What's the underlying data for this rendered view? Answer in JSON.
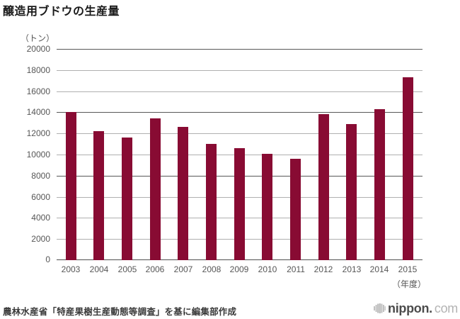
{
  "title": "醸造用ブドウの生産量",
  "footer": {
    "source": "農林水産省「特産果樹生産動態等調査」を基に編集部作成"
  },
  "brand": {
    "bold": "nippon.",
    "light": "com"
  },
  "chart_data": {
    "type": "bar",
    "title": "醸造用ブドウの生産量",
    "unit_label": "（トン）",
    "x_axis_note": "（年度）",
    "categories": [
      "2003",
      "2004",
      "2005",
      "2006",
      "2007",
      "2008",
      "2009",
      "2010",
      "2011",
      "2012",
      "2013",
      "2014",
      "2015"
    ],
    "values": [
      14000,
      12200,
      11600,
      13400,
      12600,
      11000,
      10600,
      10100,
      9600,
      13800,
      12900,
      14300,
      17300
    ],
    "xlabel": "年度",
    "ylabel": "トン",
    "ylim": [
      0,
      20000
    ],
    "ytick_step": 2000,
    "grid": true,
    "legend": "none",
    "strong_gridlines": [
      20000,
      14000,
      8000
    ],
    "colors": {
      "bar": "#880B33",
      "grid_light": "#b0b0b0",
      "grid_strong": "#585858",
      "axis": "#4f4f4f",
      "tick_text": "#565656",
      "title_text": "#1a1a1a",
      "footer_text": "#3a3a3a",
      "brand_dark": "#4c4c4c",
      "brand_light": "#b3b3b3"
    }
  }
}
